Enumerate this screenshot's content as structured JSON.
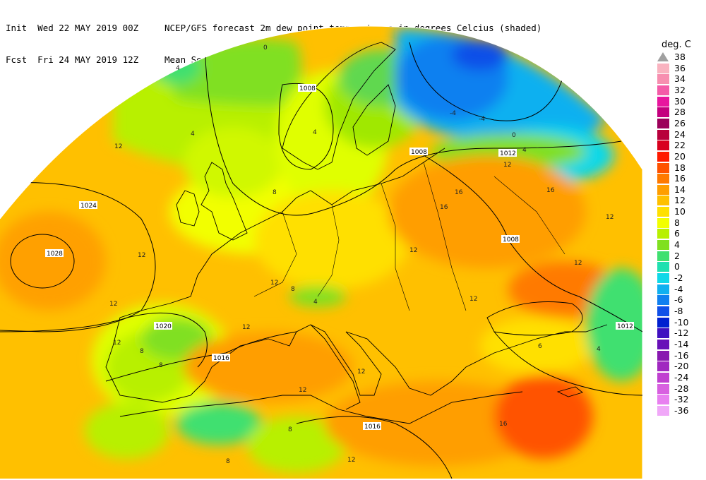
{
  "header": {
    "init_label": "Init",
    "init_value": "Wed 22 MAY 2019 00Z",
    "fcst_label": "Fcst",
    "fcst_value": "Fri 24 MAY 2019 12Z",
    "title_line1": "NCEP/GFS forecast 2m dew point temperatures in degrees Celcius (shaded)",
    "title_line2": "Mean Sea-Level Pressure (hPa) (black)."
  },
  "legend": {
    "unit": "deg. C",
    "levels": [
      {
        "label": "38",
        "color": "#a0a0a0"
      },
      {
        "label": "36",
        "color": "#f9b3c0"
      },
      {
        "label": "34",
        "color": "#f78fb0"
      },
      {
        "label": "32",
        "color": "#f45ba8"
      },
      {
        "label": "30",
        "color": "#e8169e"
      },
      {
        "label": "28",
        "color": "#c4007e"
      },
      {
        "label": "26",
        "color": "#9c005a"
      },
      {
        "label": "24",
        "color": "#b8003c"
      },
      {
        "label": "22",
        "color": "#d8001e"
      },
      {
        "label": "20",
        "color": "#ff1a00"
      },
      {
        "label": "18",
        "color": "#ff5200"
      },
      {
        "label": "16",
        "color": "#ff7a00"
      },
      {
        "label": "14",
        "color": "#ff9e00"
      },
      {
        "label": "12",
        "color": "#ffc000"
      },
      {
        "label": "10",
        "color": "#ffe000"
      },
      {
        "label": "8",
        "color": "#f2ff00"
      },
      {
        "label": "6",
        "color": "#b8f000"
      },
      {
        "label": "4",
        "color": "#80e020"
      },
      {
        "label": "2",
        "color": "#40e070"
      },
      {
        "label": "0",
        "color": "#20e0b0"
      },
      {
        "label": "-2",
        "color": "#10d8e8"
      },
      {
        "label": "-4",
        "color": "#10b0f0"
      },
      {
        "label": "-6",
        "color": "#1080f0"
      },
      {
        "label": "-8",
        "color": "#1050e8"
      },
      {
        "label": "-10",
        "color": "#0020d0"
      },
      {
        "label": "-12",
        "color": "#4010c0"
      },
      {
        "label": "-14",
        "color": "#6810b8"
      },
      {
        "label": "-16",
        "color": "#8818b0"
      },
      {
        "label": "-20",
        "color": "#a028c0"
      },
      {
        "label": "-24",
        "color": "#c040d0"
      },
      {
        "label": "-28",
        "color": "#d860e0"
      },
      {
        "label": "-32",
        "color": "#e880f0"
      },
      {
        "label": "-36",
        "color": "#f0a8f8"
      }
    ]
  },
  "isobars": {
    "items": [
      {
        "label": "1028"
      },
      {
        "label": "1024"
      },
      {
        "label": "1020"
      },
      {
        "label": "1016"
      },
      {
        "label": "1016"
      },
      {
        "label": "1012"
      },
      {
        "label": "1012"
      },
      {
        "label": "1008"
      },
      {
        "label": "1008"
      },
      {
        "label": "1008"
      }
    ]
  },
  "dewpoint_labels": {
    "items": [
      {
        "label": "0"
      },
      {
        "label": "4"
      },
      {
        "label": "12"
      },
      {
        "label": "12"
      },
      {
        "label": "12"
      },
      {
        "label": "12"
      },
      {
        "label": "8"
      },
      {
        "label": "4"
      },
      {
        "label": "-4"
      },
      {
        "label": "-4"
      },
      {
        "label": "0"
      },
      {
        "label": "4"
      },
      {
        "label": "12"
      },
      {
        "label": "16"
      },
      {
        "label": "16"
      },
      {
        "label": "16"
      },
      {
        "label": "12"
      },
      {
        "label": "12"
      },
      {
        "label": "8"
      },
      {
        "label": "12"
      },
      {
        "label": "4"
      },
      {
        "label": "8"
      },
      {
        "label": "12"
      },
      {
        "label": "8"
      },
      {
        "label": "12"
      },
      {
        "label": "12"
      },
      {
        "label": "16"
      },
      {
        "label": "12"
      },
      {
        "label": "4"
      },
      {
        "label": "8"
      },
      {
        "label": "12"
      },
      {
        "label": "8"
      },
      {
        "label": "12"
      },
      {
        "label": "4"
      },
      {
        "label": "6"
      }
    ]
  },
  "colors": {
    "isobar": "#000000",
    "coast": "#000000",
    "background": "#ffffff"
  }
}
